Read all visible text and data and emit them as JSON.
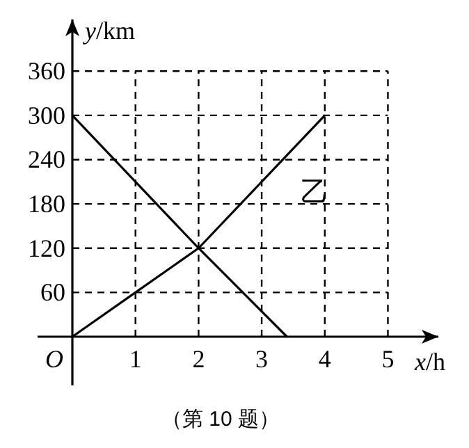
{
  "chart_data": {
    "type": "line",
    "xlabel": "x/h",
    "ylabel": "y/km",
    "xlim": [
      0,
      5.8
    ],
    "ylim": [
      0,
      430
    ],
    "xticks": [
      1,
      2,
      3,
      4,
      5
    ],
    "yticks": [
      60,
      120,
      180,
      240,
      300,
      360
    ],
    "grid": true,
    "line_style": "solid",
    "marker": "none",
    "series": [
      {
        "color": "#000000",
        "x": [
          0,
          2,
          3.4
        ],
        "values": [
          300,
          120,
          0
        ]
      },
      {
        "name": "乙",
        "color": "#000000",
        "x": [
          0,
          1,
          2,
          4
        ],
        "values": [
          0,
          60,
          120,
          300
        ]
      }
    ],
    "annotations": [
      {
        "text": "O",
        "x": 0,
        "y": 0
      },
      "（第 10 题）"
    ]
  }
}
